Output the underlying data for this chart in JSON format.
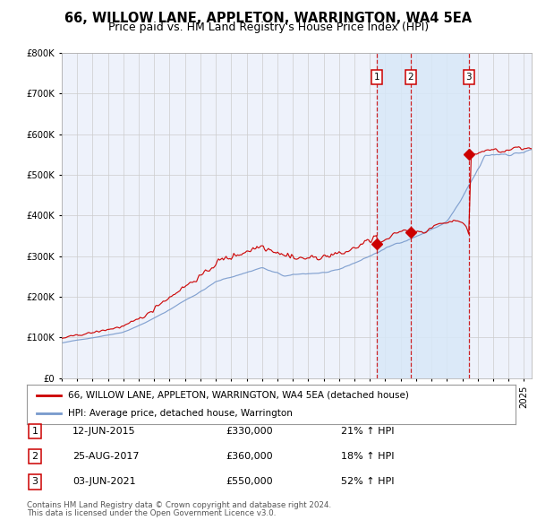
{
  "title_line1": "66, WILLOW LANE, APPLETON, WARRINGTON, WA4 5EA",
  "title_line2": "Price paid vs. HM Land Registry's House Price Index (HPI)",
  "red_label": "66, WILLOW LANE, APPLETON, WARRINGTON, WA4 5EA (detached house)",
  "blue_label": "HPI: Average price, detached house, Warrington",
  "transactions": [
    {
      "num": 1,
      "date": "12-JUN-2015",
      "price": 330000,
      "pct": "21%",
      "dir": "↑",
      "x_year": 2015.44
    },
    {
      "num": 2,
      "date": "25-AUG-2017",
      "price": 360000,
      "pct": "18%",
      "dir": "↑",
      "x_year": 2017.65
    },
    {
      "num": 3,
      "date": "03-JUN-2021",
      "price": 550000,
      "pct": "52%",
      "dir": "↑",
      "x_year": 2021.42
    }
  ],
  "footnote1": "Contains HM Land Registry data © Crown copyright and database right 2024.",
  "footnote2": "This data is licensed under the Open Government Licence v3.0.",
  "ylim": [
    0,
    800000
  ],
  "xlim_start": 1995.0,
  "xlim_end": 2025.5,
  "background_color": "#ffffff",
  "plot_bg_color": "#eef2fb",
  "grid_color": "#cccccc",
  "red_color": "#cc0000",
  "blue_color": "#7799cc",
  "shade_color": "#d8e8f8",
  "title_fontsize": 10.5,
  "subtitle_fontsize": 9.5
}
